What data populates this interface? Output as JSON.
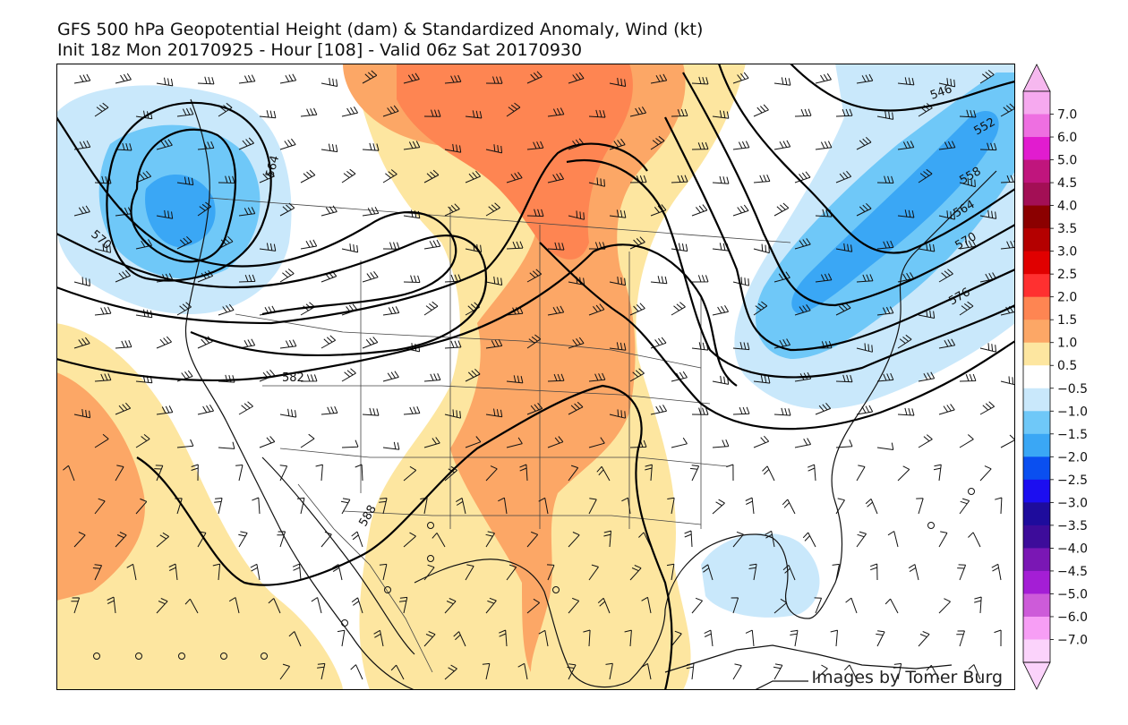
{
  "title": {
    "line1": "GFS 500 hPa Geopotential Height (dam) & Standardized Anomaly, Wind (kt)",
    "line2": "Init 18z Mon 20170925 - Hour [108] - Valid 06z Sat 20170930"
  },
  "credit": "Images by Tomer Burg",
  "contour_labels": [
    "546",
    "552",
    "558",
    "564",
    "570",
    "576",
    "582",
    "588",
    "564",
    "570"
  ],
  "colorbar": {
    "ticks": [
      "7.0",
      "6.0",
      "5.0",
      "4.5",
      "4.0",
      "3.5",
      "3.0",
      "2.5",
      "2.0",
      "1.5",
      "1.0",
      "0.5",
      "−0.5",
      "−1.0",
      "−1.5",
      "−2.0",
      "−2.5",
      "−3.0",
      "−3.5",
      "−4.0",
      "−4.5",
      "−5.0",
      "−6.0",
      "−7.0"
    ],
    "colors": [
      "#f6a9ef",
      "#ee6fe1",
      "#e11ccf",
      "#c0157d",
      "#a30f55",
      "#8b0000",
      "#b40000",
      "#e00000",
      "#ff3030",
      "#fe8552",
      "#fca766",
      "#fde6a0",
      "#ffffff",
      "#c9e8fb",
      "#6fc8f8",
      "#3aa7f5",
      "#0a4ff0",
      "#1c0ef0",
      "#1e0c9c",
      "#3d0c9a",
      "#7a17b4",
      "#a41ed5",
      "#cd5bd9",
      "#f79ef5",
      "#fbd3fb"
    ],
    "extend_high_color": "#f6b8ef",
    "extend_low_color": "#fbd3fb"
  },
  "anomaly_regions": [
    {
      "name": "northwest-low-anomaly",
      "color": "#c9e8fb"
    },
    {
      "name": "northeast-trough-anomaly",
      "color": "#6fc8f8"
    },
    {
      "name": "central-ridge-anomaly",
      "color": "#fca766"
    },
    {
      "name": "gulf-low-anomaly",
      "color": "#c9e8fb"
    }
  ]
}
